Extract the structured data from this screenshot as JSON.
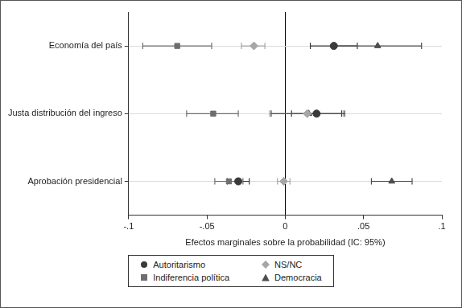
{
  "chart_data": {
    "type": "coefficient_plot",
    "orientation": "horizontal",
    "x_label": "Efectos marginales sobre la probabilidad (IC: 95%)",
    "categories": [
      "Economía del país",
      "Justa distribución del ingreso",
      "Aprobación presidencial"
    ],
    "xlim": [
      -0.1,
      0.1
    ],
    "xticks": [
      {
        "value": -0.1,
        "label": "-.1"
      },
      {
        "value": -0.05,
        "label": "-.05"
      },
      0,
      {
        "value": 0.05,
        "label": ".05"
      },
      {
        "value": 0.1,
        "label": ".1"
      }
    ],
    "grid": true,
    "legend": "bottom",
    "series": [
      {
        "name": "Autoritarismo",
        "color": "#3a3a3a",
        "marker": "circle",
        "values": [
          0.031,
          0.02,
          -0.03
        ],
        "ci_low": [
          0.016,
          0.004,
          -0.037
        ],
        "ci_high": [
          0.046,
          0.036,
          -0.023
        ]
      },
      {
        "name": "Indiferencia política",
        "color": "#6e6e6e",
        "marker": "square",
        "values": [
          -0.069,
          -0.046,
          -0.036
        ],
        "ci_low": [
          -0.091,
          -0.063,
          -0.045
        ],
        "ci_high": [
          -0.047,
          -0.03,
          -0.027
        ]
      },
      {
        "name": "NS/NC",
        "color": "#a6a6a6",
        "marker": "diamond",
        "values": [
          -0.02,
          0.014,
          -0.001
        ],
        "ci_low": [
          -0.028,
          -0.01,
          -0.005
        ],
        "ci_high": [
          -0.013,
          0.037,
          0.003
        ]
      },
      {
        "name": "Democracia",
        "color": "#4d4d4d",
        "marker": "triangle",
        "values": [
          0.059,
          0.015,
          0.068
        ],
        "ci_low": [
          0.031,
          -0.009,
          0.055
        ],
        "ci_high": [
          0.087,
          0.038,
          0.081
        ]
      }
    ]
  }
}
